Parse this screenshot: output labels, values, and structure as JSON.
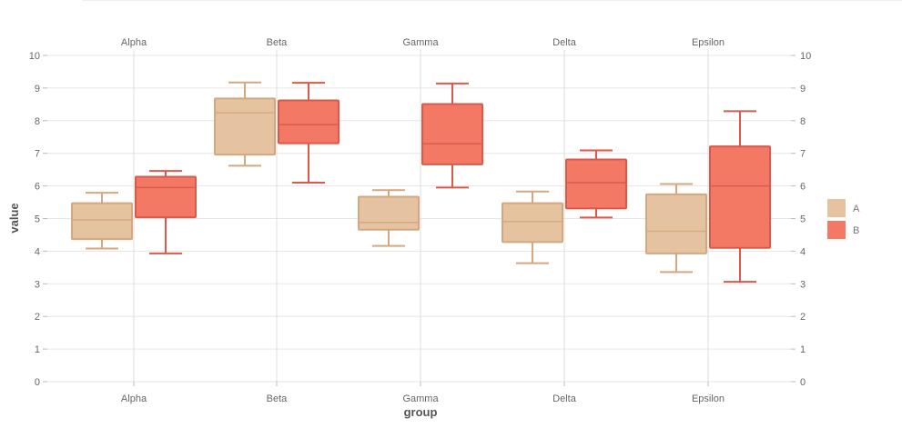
{
  "chart_data": {
    "type": "boxplot",
    "title": "",
    "xlabel": "group",
    "ylabel": "value",
    "ylim": [
      0,
      10
    ],
    "yticks": [
      "0",
      "1",
      "2",
      "3",
      "4",
      "5",
      "6",
      "7",
      "8",
      "9",
      "10"
    ],
    "categories": [
      "Alpha",
      "Beta",
      "Gamma",
      "Delta",
      "Epsilon"
    ],
    "grid": true,
    "legend_position": "right",
    "series": [
      {
        "name": "A",
        "color": "#e6c3a0",
        "stroke": "#d4a77f",
        "boxes": [
          {
            "min": 4.08,
            "q1": 4.37,
            "median": 4.96,
            "q3": 5.47,
            "max": 5.79
          },
          {
            "min": 6.62,
            "q1": 6.96,
            "median": 8.24,
            "q3": 8.68,
            "max": 9.17
          },
          {
            "min": 4.16,
            "q1": 4.66,
            "median": 4.88,
            "q3": 5.67,
            "max": 5.87
          },
          {
            "min": 3.63,
            "q1": 4.28,
            "median": 4.91,
            "q3": 5.47,
            "max": 5.83
          },
          {
            "min": 3.36,
            "q1": 3.93,
            "median": 4.61,
            "q3": 5.74,
            "max": 6.06
          }
        ]
      },
      {
        "name": "B",
        "color": "#f47965",
        "stroke": "#d9594a",
        "boxes": [
          {
            "min": 3.93,
            "q1": 5.04,
            "median": 5.95,
            "q3": 6.28,
            "max": 6.46
          },
          {
            "min": 6.1,
            "q1": 7.31,
            "median": 7.88,
            "q3": 8.62,
            "max": 9.16
          },
          {
            "min": 5.95,
            "q1": 6.66,
            "median": 7.29,
            "q3": 8.51,
            "max": 9.14
          },
          {
            "min": 5.03,
            "q1": 5.31,
            "median": 6.1,
            "q3": 6.81,
            "max": 7.09
          },
          {
            "min": 3.06,
            "q1": 4.1,
            "median": 6.0,
            "q3": 7.21,
            "max": 8.29
          }
        ]
      }
    ]
  }
}
